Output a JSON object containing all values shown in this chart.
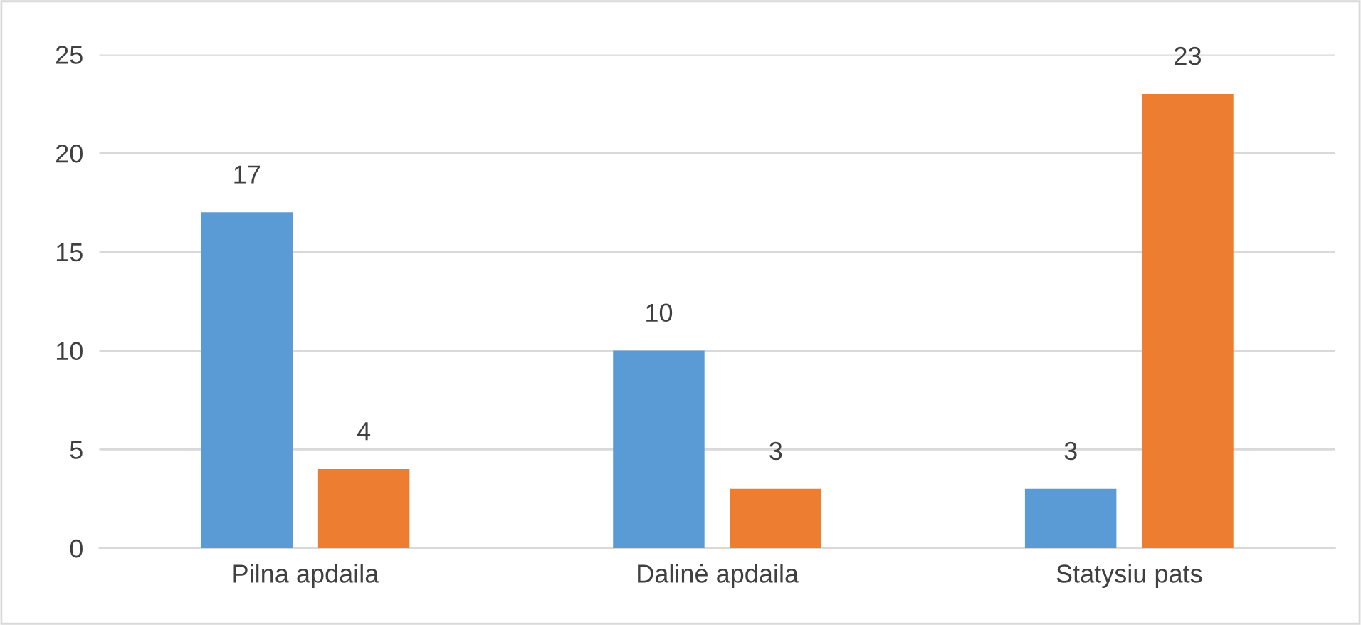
{
  "chart_data": {
    "type": "bar",
    "categories": [
      "Pilna apdaila",
      "Dalinė apdaila",
      "Statysiu pats"
    ],
    "series": [
      {
        "color": "#5b9bd5",
        "values": [
          17,
          10,
          3
        ]
      },
      {
        "color": "#ed7d31",
        "values": [
          4,
          3,
          23
        ]
      }
    ],
    "ylim": [
      0,
      25
    ],
    "yticks": [
      0,
      5,
      10,
      15,
      20,
      25
    ],
    "grid": "y",
    "data_labels": true
  }
}
